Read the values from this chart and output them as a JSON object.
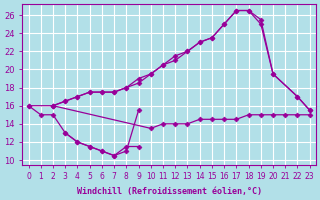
{
  "background_color": "#b2e0e8",
  "grid_color": "#ffffff",
  "line_color": "#990099",
  "marker": "D",
  "marker_size": 2.5,
  "xlabel": "Windchill (Refroidissement éolien,°C)",
  "xlim": [
    -0.5,
    23.5
  ],
  "ylim": [
    9.5,
    27.2
  ],
  "xtick_labels": [
    "0",
    "1",
    "2",
    "3",
    "4",
    "5",
    "6",
    "7",
    "8",
    "9",
    "10",
    "11",
    "12",
    "13",
    "14",
    "15",
    "16",
    "17",
    "18",
    "19",
    "20",
    "21",
    "22",
    "23"
  ],
  "ytick_values": [
    10,
    12,
    14,
    16,
    18,
    20,
    22,
    24,
    26
  ],
  "series": [
    {
      "x": [
        0,
        1,
        2,
        3,
        4,
        5,
        6,
        7,
        8,
        9
      ],
      "y": [
        16.0,
        15.0,
        15.0,
        13.0,
        12.0,
        11.5,
        11.0,
        10.5,
        11.5,
        11.5
      ]
    },
    {
      "x": [
        2,
        3,
        4,
        5,
        6,
        7,
        8,
        9,
        10,
        11,
        12,
        13,
        14,
        15,
        16,
        17,
        18,
        19,
        20,
        22,
        23
      ],
      "y": [
        16.0,
        16.5,
        17.0,
        17.5,
        17.5,
        17.5,
        18.0,
        19.0,
        19.5,
        20.5,
        21.0,
        22.0,
        23.0,
        23.5,
        25.0,
        26.5,
        26.5,
        25.5,
        19.5,
        17.0,
        15.5
      ]
    },
    {
      "x": [
        2,
        3,
        4,
        5,
        6,
        7,
        8,
        9,
        10,
        11,
        12,
        13,
        14,
        15,
        16,
        17,
        18,
        19,
        20,
        22,
        23
      ],
      "y": [
        16.0,
        16.5,
        17.0,
        17.5,
        17.5,
        17.5,
        18.0,
        18.5,
        19.5,
        20.5,
        21.5,
        22.0,
        23.0,
        23.5,
        25.0,
        26.5,
        26.5,
        25.0,
        19.5,
        17.0,
        15.5
      ]
    },
    {
      "x": [
        0,
        2,
        10,
        11,
        12,
        13,
        14,
        15,
        16,
        17,
        18,
        19,
        20,
        21,
        22,
        23
      ],
      "y": [
        16.0,
        16.0,
        13.5,
        14.0,
        14.0,
        14.0,
        14.5,
        14.5,
        14.5,
        14.5,
        15.0,
        15.0,
        15.0,
        15.0,
        15.0,
        15.0
      ]
    },
    {
      "x": [
        3,
        4,
        5,
        6,
        7,
        8,
        9
      ],
      "y": [
        13.0,
        12.0,
        11.5,
        11.0,
        10.5,
        11.0,
        15.5
      ]
    }
  ]
}
